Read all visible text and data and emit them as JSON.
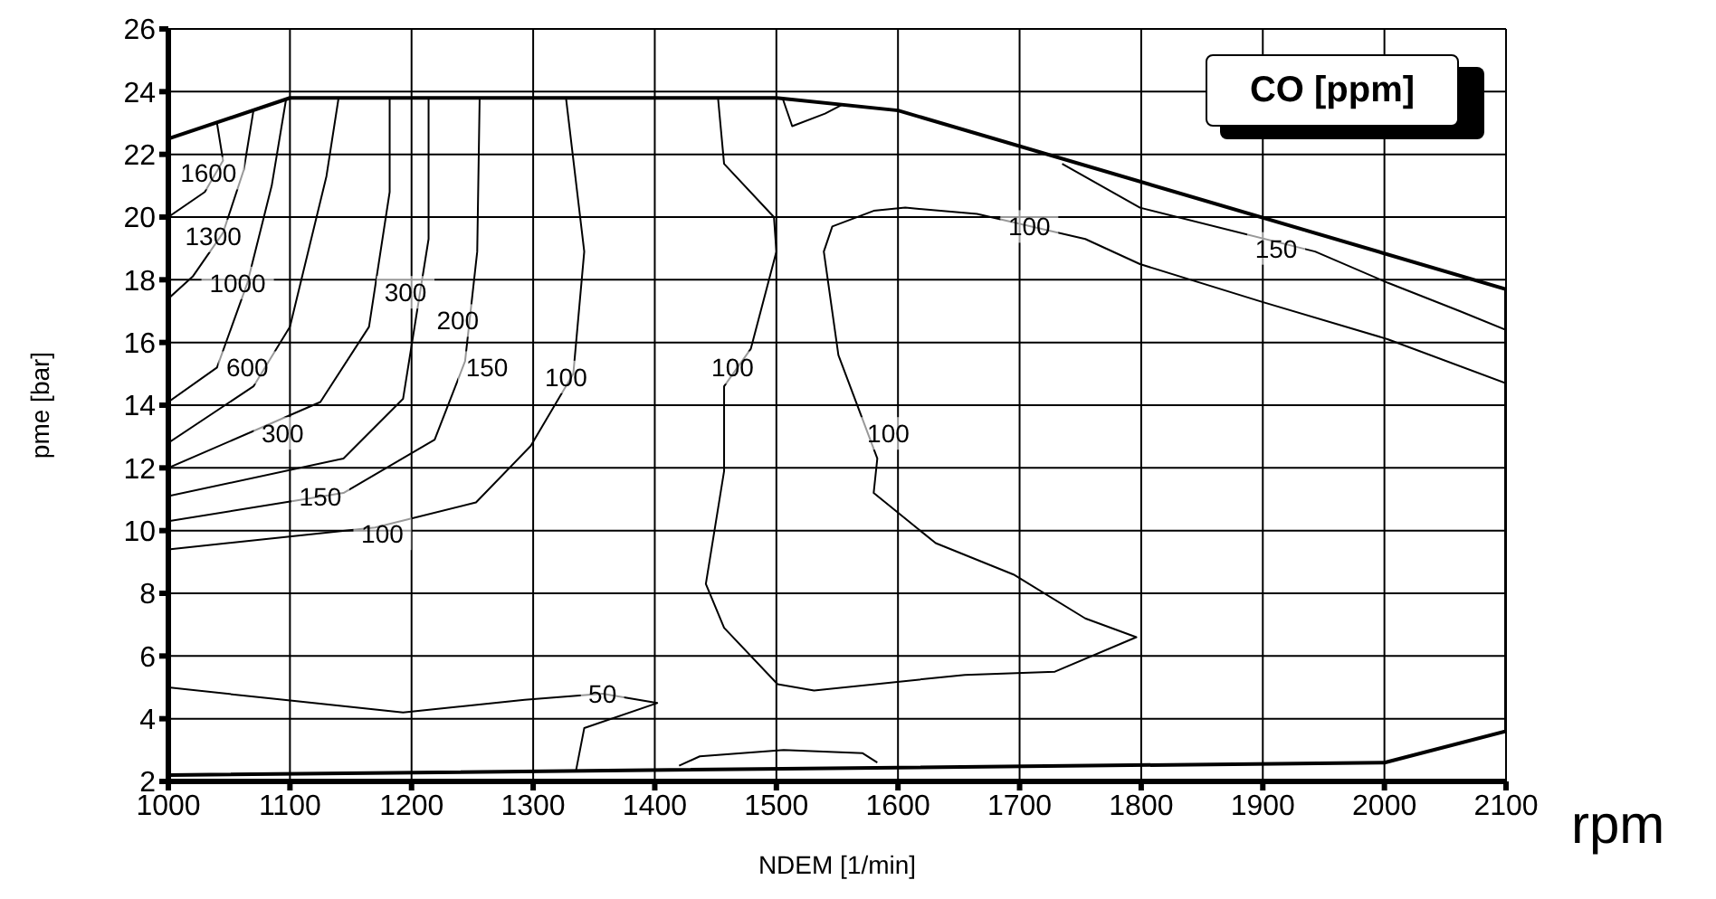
{
  "chart_data": {
    "type": "line",
    "title": "CO [ppm]",
    "xlabel": "NDEM   [1/min]",
    "ylabel": "pme  [bar]",
    "xlim": [
      1000,
      2100
    ],
    "xticks": [
      1000,
      1100,
      1200,
      1300,
      1400,
      1500,
      1600,
      1700,
      1800,
      1900,
      2000,
      2100
    ],
    "ylim": [
      2,
      26
    ],
    "yticks": [
      2,
      4,
      6,
      8,
      10,
      12,
      14,
      16,
      18,
      20,
      22,
      24,
      26
    ],
    "grid": true,
    "marker": "none",
    "line_style": "solid",
    "series": [
      {
        "color": "#000000",
        "x": [
          1000,
          1100,
          1500,
          1600,
          2100
        ],
        "values": [
          22.5,
          23.8,
          23.8,
          23.4,
          17.7
        ]
      },
      {
        "color": "#000000",
        "x": [
          1000,
          2000,
          2100
        ],
        "values": [
          2.2,
          2.6,
          3.6
        ]
      },
      {
        "color": "#000000",
        "x": [
          2100,
          2100
        ],
        "values": [
          3.6,
          17.7
        ]
      },
      {
        "color": "#000000",
        "x": [
          1040,
          1045,
          1030,
          1000
        ],
        "values": [
          23.0,
          21.8,
          20.8,
          20.0
        ]
      },
      {
        "color": "#000000",
        "x": [
          1070,
          1062,
          1045,
          1020,
          1000
        ],
        "values": [
          23.4,
          21.5,
          19.5,
          18.1,
          17.4
        ]
      },
      {
        "color": "#000000",
        "x": [
          1097,
          1085,
          1065,
          1040,
          1000
        ],
        "values": [
          23.8,
          21.0,
          17.9,
          15.2,
          14.1
        ]
      },
      {
        "color": "#000000",
        "x": [
          1140,
          1130,
          1100,
          1070,
          1000
        ],
        "values": [
          23.8,
          21.3,
          16.5,
          14.6,
          12.8
        ]
      },
      {
        "color": "#000000",
        "x": [
          1182,
          1182,
          1165,
          1125,
          1000
        ],
        "values": [
          23.8,
          20.8,
          16.5,
          14.1,
          12.0
        ]
      },
      {
        "color": "#000000",
        "x": [
          1214,
          1214,
          1193,
          1144,
          1000
        ],
        "values": [
          23.8,
          19.3,
          14.2,
          12.3,
          11.1
        ]
      },
      {
        "color": "#000000",
        "x": [
          1256,
          1254,
          1244,
          1219,
          1144,
          1000
        ],
        "values": [
          23.8,
          18.9,
          15.4,
          12.9,
          11.2,
          10.3
        ]
      },
      {
        "color": "#000000",
        "x": [
          1327,
          1342,
          1333,
          1298,
          1253,
          1170,
          1000
        ],
        "values": [
          23.8,
          18.9,
          15.0,
          12.7,
          10.9,
          10.1,
          9.4
        ]
      },
      {
        "color": "#000000",
        "x": [
          1452,
          1457,
          1498,
          1500,
          1479,
          1457,
          1457,
          1442,
          1457,
          1501,
          1531,
          1655,
          1729,
          1796,
          1754,
          1695,
          1631,
          1580,
          1583,
          1551,
          1539,
          1546,
          1580,
          1606,
          1665,
          1754,
          1799,
          1899,
          2003,
          2100
        ],
        "values": [
          23.8,
          21.7,
          20.0,
          18.9,
          15.8,
          14.6,
          11.9,
          8.3,
          6.9,
          5.1,
          4.9,
          5.4,
          5.5,
          6.6,
          7.2,
          8.6,
          9.6,
          11.2,
          12.3,
          15.6,
          18.9,
          19.7,
          20.2,
          20.3,
          20.1,
          19.3,
          18.5,
          17.3,
          16.1,
          14.7
        ]
      },
      {
        "color": "#000000",
        "x": [
          1735,
          1799,
          1943,
          2003,
          2062,
          2100
        ],
        "values": [
          21.7,
          20.3,
          18.9,
          17.9,
          17.0,
          16.4
        ]
      },
      {
        "color": "#000000",
        "x": [
          1505,
          1513,
          1540,
          1555
        ],
        "values": [
          23.8,
          22.9,
          23.3,
          23.6
        ]
      },
      {
        "color": "#000000",
        "x": [
          1000,
          1095,
          1193,
          1293,
          1357,
          1402,
          1342,
          1335
        ],
        "values": [
          5.0,
          4.6,
          4.2,
          4.6,
          4.8,
          4.5,
          3.7,
          2.3
        ]
      },
      {
        "color": "#000000",
        "x": [
          1420,
          1437,
          1506,
          1571,
          1583
        ],
        "values": [
          2.5,
          2.8,
          3.0,
          2.9,
          2.6
        ]
      }
    ],
    "annotations": [
      {
        "text": "1600",
        "x": 1033,
        "y": 21.4
      },
      {
        "text": "1300",
        "x": 1037,
        "y": 19.4
      },
      {
        "text": "1000",
        "x": 1057,
        "y": 17.9
      },
      {
        "text": "600",
        "x": 1065,
        "y": 15.2
      },
      {
        "text": "300",
        "x": 1094,
        "y": 13.1
      },
      {
        "text": "150",
        "x": 1125,
        "y": 11.1
      },
      {
        "text": "100",
        "x": 1176,
        "y": 9.9
      },
      {
        "text": "300",
        "x": 1195,
        "y": 17.6
      },
      {
        "text": "200",
        "x": 1238,
        "y": 16.7
      },
      {
        "text": "150",
        "x": 1262,
        "y": 15.2
      },
      {
        "text": "100",
        "x": 1327,
        "y": 14.9
      },
      {
        "text": "100",
        "x": 1464,
        "y": 15.2
      },
      {
        "text": "100",
        "x": 1592,
        "y": 13.1
      },
      {
        "text": "100",
        "x": 1708,
        "y": 19.7
      },
      {
        "text": "150",
        "x": 1911,
        "y": 19.0
      },
      {
        "text": "50",
        "x": 1357,
        "y": 4.8
      },
      "rpm"
    ]
  }
}
